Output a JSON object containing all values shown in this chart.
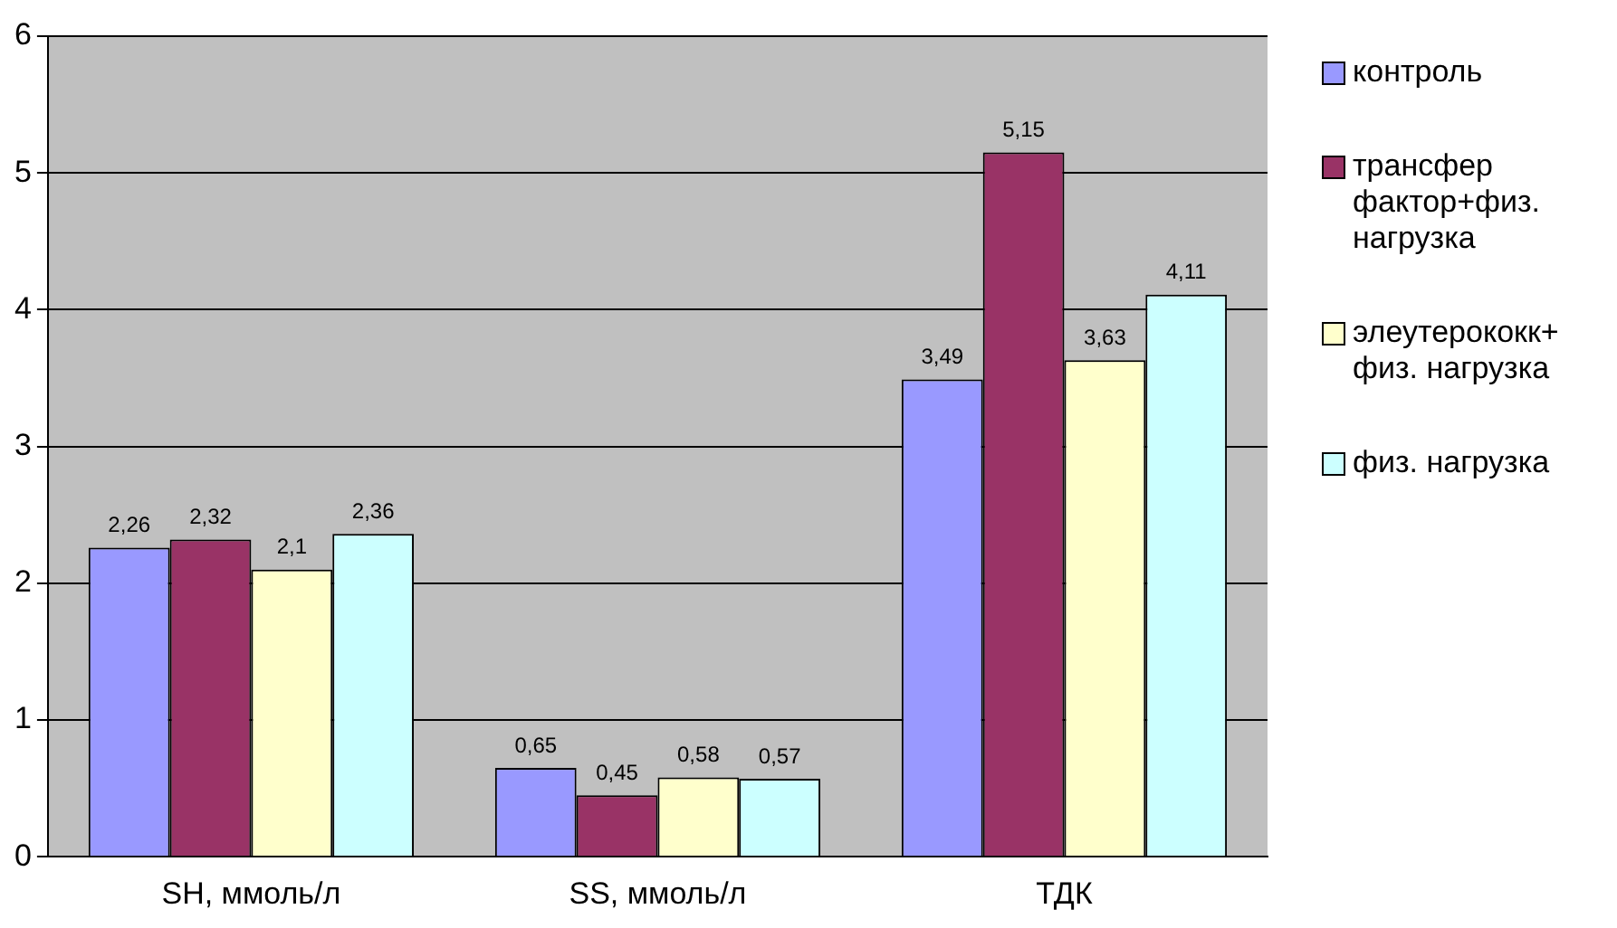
{
  "chart_data": {
    "type": "bar",
    "categories": [
      "SH, ммоль/л",
      "SS, ммоль/л",
      "ТДК"
    ],
    "series": [
      {
        "name": "контроль",
        "color": "#9999ff",
        "values": [
          2.26,
          0.65,
          3.49
        ],
        "value_labels": [
          "2,26",
          "0,65",
          "3,49"
        ]
      },
      {
        "name": "трансфер фактор+физ. нагрузка",
        "color": "#993366",
        "values": [
          2.32,
          0.45,
          5.15
        ],
        "value_labels": [
          "2,32",
          "0,45",
          "5,15"
        ]
      },
      {
        "name": "элеутерококк+ физ. нагрузка",
        "color": "#ffffcc",
        "values": [
          2.1,
          0.58,
          3.63
        ],
        "value_labels": [
          "2,1",
          "0,58",
          "3,63"
        ]
      },
      {
        "name": "физ. нагрузка",
        "color": "#ccffff",
        "values": [
          2.36,
          0.57,
          4.11
        ],
        "value_labels": [
          "2,36",
          "0,57",
          "4,11"
        ]
      }
    ],
    "ylim": [
      0,
      6
    ],
    "yticks": [
      0,
      1,
      2,
      3,
      4,
      5,
      6
    ],
    "grid": "y",
    "legend": "right"
  }
}
